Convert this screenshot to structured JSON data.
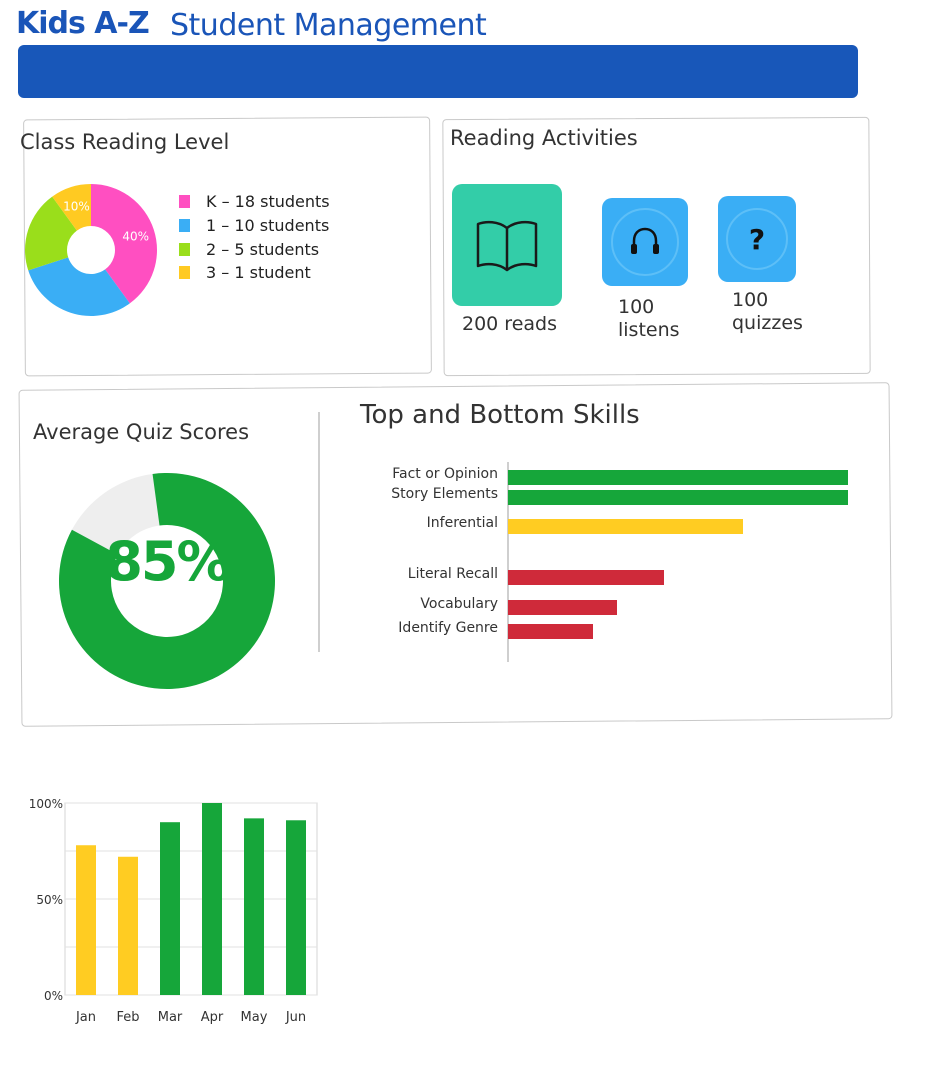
{
  "header": {
    "brand": "Kids A-Z",
    "title": "Student Management"
  },
  "class_reading_level": {
    "title": "Class Reading Level",
    "slices": [
      {
        "percent_label": "40%",
        "value": 40,
        "color": "#ff4fc1"
      },
      {
        "percent_label": "",
        "value": 30,
        "color": "#3aaef5"
      },
      {
        "percent_label": "",
        "value": 20,
        "color": "#9ade1b"
      },
      {
        "percent_label": "10%",
        "value": 10,
        "color": "#ffca22"
      }
    ],
    "legend": [
      {
        "label": "K – 18 students",
        "color": "#ff4fc1"
      },
      {
        "label": "1 – 10 students",
        "color": "#3aaef5"
      },
      {
        "label": "2 – 5 students",
        "color": "#9ade1b"
      },
      {
        "label": "3 – 1 student",
        "color": "#ffca22"
      }
    ]
  },
  "reading_activities": {
    "title": "Reading Activities",
    "items": [
      {
        "label_line1": "200 reads",
        "label_line2": "",
        "icon": "book-icon",
        "color": "#33cda8"
      },
      {
        "label_line1": "100",
        "label_line2": "listens",
        "icon": "headphones-icon",
        "color": "#3aaef5"
      },
      {
        "label_line1": "100",
        "label_line2": "quizzes",
        "icon": "question-icon",
        "color": "#3aaef5"
      }
    ]
  },
  "average_quiz_scores": {
    "title": "Average Quiz Scores",
    "score_label": "85%",
    "score": 85,
    "color": "#16a63a"
  },
  "skills": {
    "title": "Top and Bottom Skills",
    "items": [
      {
        "label": "Fact or Opinion",
        "value": 100,
        "color": "#16a63a"
      },
      {
        "label": "Story Elements",
        "value": 100,
        "color": "#16a63a"
      },
      {
        "label": "Inferential",
        "value": 69,
        "color": "#ffcc22"
      },
      {
        "label": "Literal Recall",
        "value": 46,
        "color": "#cf2a3a"
      },
      {
        "label": "Vocabulary",
        "value": 32,
        "color": "#cf2a3a"
      },
      {
        "label": "Identify Genre",
        "value": 25,
        "color": "#cf2a3a"
      }
    ]
  },
  "chart_data": {
    "type": "bar",
    "title": "",
    "xlabel": "",
    "ylabel": "",
    "categories": [
      "Jan",
      "Feb",
      "Mar",
      "Apr",
      "May",
      "Jun"
    ],
    "values": [
      78,
      72,
      90,
      100,
      92,
      91
    ],
    "colors": [
      "#ffcc22",
      "#ffcc22",
      "#16a63a",
      "#16a63a",
      "#16a63a",
      "#16a63a"
    ],
    "yticks": [
      "0%",
      "50%",
      "100%"
    ],
    "ylim": [
      0,
      100
    ],
    "grid": true
  }
}
